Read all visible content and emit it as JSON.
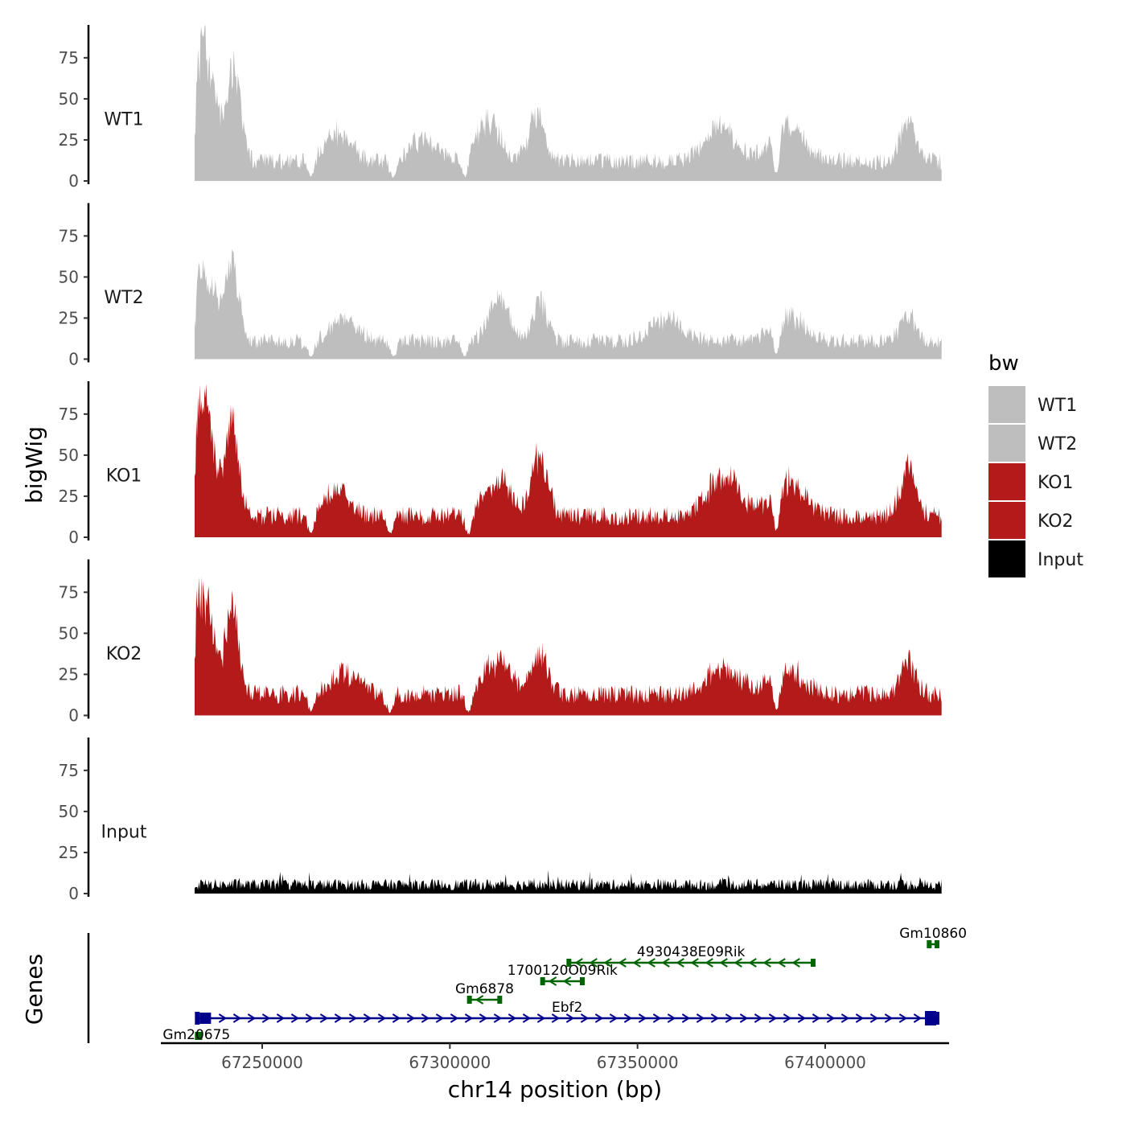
{
  "chart_data": {
    "type": "area",
    "title": "",
    "ylabel": "bigWig",
    "genes_label": "Genes",
    "xlabel": "chr14 position (bp)",
    "xlim": [
      67223000,
      67433000
    ],
    "data_range": [
      67232000,
      67431000
    ],
    "ylim": [
      0,
      95
    ],
    "y_ticks": [
      0,
      25,
      50,
      75
    ],
    "x_ticks": [
      67250000,
      67300000,
      67350000,
      67400000
    ],
    "colors": {
      "WT": "#bebebe",
      "KO": "#b31b1b",
      "Input": "#000000"
    },
    "tracks": [
      {
        "name": "WT1",
        "group": "WT",
        "baseline": 12,
        "peaks": [
          {
            "pos": 67234500,
            "height": 72,
            "width": 4000
          },
          {
            "pos": 67242500,
            "height": 60,
            "width": 2500
          },
          {
            "pos": 67270000,
            "height": 18,
            "width": 5000
          },
          {
            "pos": 67293000,
            "height": 14,
            "width": 5000
          },
          {
            "pos": 67310000,
            "height": 24,
            "width": 5000
          },
          {
            "pos": 67323000,
            "height": 30,
            "width": 3000
          },
          {
            "pos": 67372000,
            "height": 22,
            "width": 6000
          },
          {
            "pos": 67390000,
            "height": 24,
            "width": 6000
          },
          {
            "pos": 67422000,
            "height": 26,
            "width": 3000
          }
        ],
        "dips": [
          67263000,
          67285000,
          67304000,
          67387000
        ]
      },
      {
        "name": "WT2",
        "group": "WT",
        "baseline": 11,
        "peaks": [
          {
            "pos": 67234500,
            "height": 48,
            "width": 4000
          },
          {
            "pos": 67242000,
            "height": 50,
            "width": 2500
          },
          {
            "pos": 67272000,
            "height": 14,
            "width": 5000
          },
          {
            "pos": 67313000,
            "height": 26,
            "width": 4000
          },
          {
            "pos": 67324000,
            "height": 28,
            "width": 2500
          },
          {
            "pos": 67358000,
            "height": 14,
            "width": 6000
          },
          {
            "pos": 67390000,
            "height": 16,
            "width": 6000
          },
          {
            "pos": 67422000,
            "height": 16,
            "width": 3000
          }
        ],
        "dips": [
          67263000,
          67285000,
          67304000,
          67387000
        ]
      },
      {
        "name": "KO1",
        "group": "KO",
        "baseline": 13,
        "peaks": [
          {
            "pos": 67234000,
            "height": 78,
            "width": 4000
          },
          {
            "pos": 67242000,
            "height": 58,
            "width": 2500
          },
          {
            "pos": 67270000,
            "height": 16,
            "width": 5000
          },
          {
            "pos": 67313000,
            "height": 24,
            "width": 5000
          },
          {
            "pos": 67324000,
            "height": 36,
            "width": 3000
          },
          {
            "pos": 67373000,
            "height": 26,
            "width": 6000
          },
          {
            "pos": 67390000,
            "height": 22,
            "width": 6000
          },
          {
            "pos": 67422000,
            "height": 30,
            "width": 3000
          }
        ],
        "dips": [
          67263000,
          67284000,
          67305000,
          67387000
        ]
      },
      {
        "name": "KO2",
        "group": "KO",
        "baseline": 13,
        "peaks": [
          {
            "pos": 67234000,
            "height": 66,
            "width": 4000
          },
          {
            "pos": 67242000,
            "height": 52,
            "width": 2500
          },
          {
            "pos": 67272000,
            "height": 14,
            "width": 5000
          },
          {
            "pos": 67313000,
            "height": 22,
            "width": 5000
          },
          {
            "pos": 67324000,
            "height": 24,
            "width": 3000
          },
          {
            "pos": 67373000,
            "height": 18,
            "width": 6000
          },
          {
            "pos": 67390000,
            "height": 16,
            "width": 6000
          },
          {
            "pos": 67422000,
            "height": 20,
            "width": 3000
          }
        ],
        "dips": [
          67263000,
          67284000,
          67305000,
          67387000
        ]
      },
      {
        "name": "Input",
        "group": "Input",
        "baseline": 5,
        "peaks": [],
        "dips": []
      }
    ],
    "genes": [
      {
        "name": "Ebf2",
        "start": 67232500,
        "end": 67430000,
        "strand": "+",
        "color": "#00008b",
        "row": 0
      },
      {
        "name": "Gm20675",
        "start": 67232500,
        "end": 67233600,
        "strand": "-",
        "color": "#006400",
        "row": -1
      },
      {
        "name": "Gm6878",
        "start": 67305000,
        "end": 67313500,
        "strand": "-",
        "color": "#006400",
        "row": 1
      },
      {
        "name": "1700120O09Rik",
        "start": 67324500,
        "end": 67335500,
        "strand": "-",
        "color": "#006400",
        "row": 2
      },
      {
        "name": "4930438E09Rik",
        "start": 67331500,
        "end": 67397000,
        "strand": "-",
        "color": "#006400",
        "row": 3
      },
      {
        "name": "Gm10860",
        "start": 67427500,
        "end": 67430000,
        "strand": "-",
        "color": "#006400",
        "row": 4
      }
    ],
    "legend": {
      "title": "bw",
      "items": [
        {
          "label": "WT1",
          "color": "#bebebe"
        },
        {
          "label": "WT2",
          "color": "#bebebe"
        },
        {
          "label": "KO1",
          "color": "#b31b1b"
        },
        {
          "label": "KO2",
          "color": "#b31b1b"
        },
        {
          "label": "Input",
          "color": "#000000"
        }
      ]
    }
  }
}
